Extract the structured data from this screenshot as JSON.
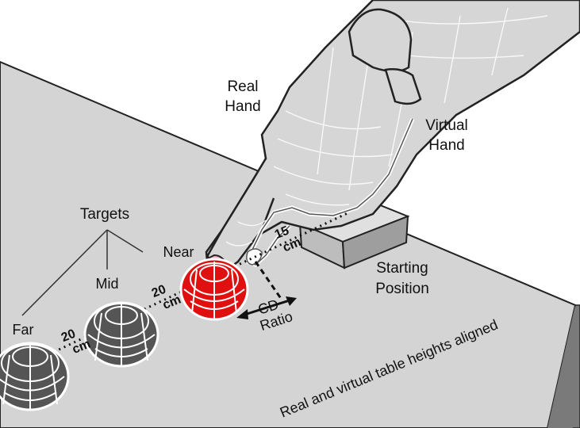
{
  "labels": {
    "real_hand_line1": "Real",
    "real_hand_line2": "Hand",
    "virtual_hand_line1": "Virtual",
    "virtual_hand_line2": "Hand",
    "targets": "Targets",
    "near": "Near",
    "mid": "Mid",
    "far": "Far",
    "dist_15_value": "15",
    "dist_15_unit": "cm",
    "dist_20_near_value": "20",
    "dist_20_near_unit": "cm",
    "dist_20_far_value": "20",
    "dist_20_far_unit": "cm",
    "cd_line1": "CD",
    "cd_line2": "Ratio",
    "start_line1": "Starting",
    "start_line2": "Position",
    "table_caption": "Real and virtual table heights aligned"
  },
  "colors": {
    "table_top": "#d4d4d4",
    "table_side": "#7a7a7a",
    "target_near": "#e01010",
    "target_other": "#555555",
    "hand_fill": "#d9d9d9",
    "virtual_hand": "#ffffff",
    "fingertip": "#f0b6c6"
  }
}
